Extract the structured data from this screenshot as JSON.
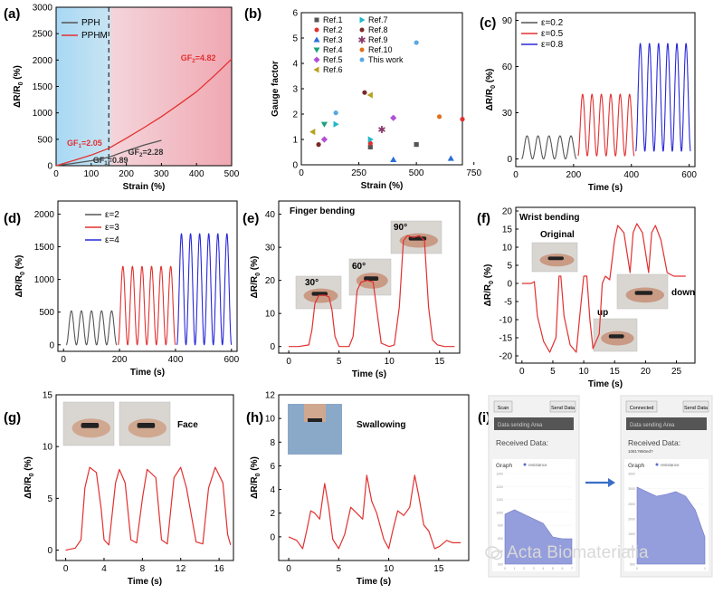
{
  "panel_labels": [
    "(a)",
    "(b)",
    "(c)",
    "(d)",
    "(e)",
    "(f)",
    "(g)",
    "(h)",
    "(i)"
  ],
  "colors": {
    "gray": "#555555",
    "red": "#e23030",
    "blue": "#2828d8",
    "bg_blue": "#9fd0f0",
    "bg_red": "#f0b0b8",
    "axis": "#000000"
  },
  "chart_data": [
    {
      "id": "a",
      "type": "line",
      "xlabel": "Strain (%)",
      "ylabel": "ΔR/R0 (%)",
      "xlim": [
        0,
        500
      ],
      "ylim": [
        0,
        3000
      ],
      "xticks": [
        0,
        100,
        200,
        300,
        400,
        500
      ],
      "yticks": [
        0,
        500,
        1000,
        1500,
        2000,
        2500,
        3000
      ],
      "legend": [
        "PPH",
        "PPHM"
      ],
      "annotations": [
        "GF1=2.05",
        "GF2=4.82",
        "GF1=0.89",
        "GF2=2.28"
      ],
      "series": [
        {
          "name": "PPH",
          "color": "#555555",
          "x": [
            0,
            50,
            100,
            150,
            200,
            250,
            300
          ],
          "y": [
            0,
            45,
            95,
            160,
            280,
            390,
            480
          ]
        },
        {
          "name": "PPHM",
          "color": "#e23030",
          "x": [
            0,
            50,
            100,
            150,
            200,
            250,
            300,
            350,
            400,
            450,
            500
          ],
          "y": [
            0,
            100,
            200,
            330,
            520,
            720,
            930,
            1160,
            1400,
            1700,
            2020
          ]
        }
      ]
    },
    {
      "id": "b",
      "type": "scatter",
      "xlabel": "Strain (%)",
      "ylabel": "Gauge factor",
      "xlim": [
        0,
        700
      ],
      "ylim": [
        0,
        6
      ],
      "xticks": [
        0,
        250,
        500,
        750
      ],
      "yticks": [
        0,
        1,
        2,
        3,
        4,
        5,
        6
      ],
      "legend_col1": [
        "Ref.1",
        "Ref.2",
        "Ref.3",
        "Ref.4",
        "Ref.5",
        "Ref.6"
      ],
      "legend_col2": [
        "Ref.7",
        "Ref.8",
        "Ref.9",
        "Ref.10",
        "This work"
      ],
      "series": [
        {
          "name": "Ref.1",
          "color": "#555555",
          "marker": "square",
          "points": [
            [
              300,
              0.7
            ],
            [
              500,
              0.8
            ]
          ]
        },
        {
          "name": "Ref.2",
          "color": "#e23030",
          "marker": "circle",
          "points": [
            [
              300,
              0.85
            ],
            [
              700,
              1.8
            ]
          ]
        },
        {
          "name": "Ref.3",
          "color": "#2a6fd6",
          "marker": "triangle",
          "points": [
            [
              400,
              0.2
            ],
            [
              650,
              0.25
            ]
          ]
        },
        {
          "name": "Ref.4",
          "color": "#1aa37a",
          "marker": "triangle-down",
          "points": [
            [
              100,
              1.6
            ]
          ]
        },
        {
          "name": "Ref.5",
          "color": "#b04fd6",
          "marker": "diamond",
          "points": [
            [
              100,
              1.0
            ],
            [
              400,
              1.85
            ]
          ]
        },
        {
          "name": "Ref.6",
          "color": "#b8a020",
          "marker": "triangle-left",
          "points": [
            [
              50,
              1.3
            ],
            [
              300,
              2.75
            ]
          ]
        },
        {
          "name": "Ref.7",
          "color": "#20b8c8",
          "marker": "triangle-right",
          "points": [
            [
              300,
              1.0
            ],
            [
              150,
              1.6
            ]
          ]
        },
        {
          "name": "Ref.8",
          "color": "#7a2a2a",
          "marker": "circle",
          "points": [
            [
              75,
              0.8
            ],
            [
              275,
              2.85
            ]
          ]
        },
        {
          "name": "Ref.9",
          "color": "#8a3a6a",
          "marker": "star",
          "points": [
            [
              350,
              1.4
            ]
          ]
        },
        {
          "name": "Ref.10",
          "color": "#e0701a",
          "marker": "circle",
          "points": [
            [
              600,
              1.9
            ]
          ]
        },
        {
          "name": "This work",
          "color": "#5aa8e0",
          "marker": "circle",
          "points": [
            [
              150,
              2.05
            ],
            [
              500,
              4.82
            ]
          ]
        }
      ]
    },
    {
      "id": "c",
      "type": "line",
      "xlabel": "Time (s)",
      "ylabel": "ΔR/R0 (%)",
      "xlim": [
        0,
        620
      ],
      "ylim": [
        -5,
        95
      ],
      "xticks": [
        0,
        200,
        400,
        600
      ],
      "yticks": [
        0,
        30,
        60,
        90
      ],
      "legend": [
        "ε=0.2",
        "ε=0.5",
        "ε=0.8"
      ],
      "series": [
        {
          "name": "ε=0.2",
          "color": "#555555",
          "x_range": [
            20,
            210
          ],
          "cycles": 5,
          "peak": 15,
          "base": 0
        },
        {
          "name": "ε=0.5",
          "color": "#e23030",
          "x_range": [
            215,
            410
          ],
          "cycles": 6,
          "peak": 42,
          "base": 2
        },
        {
          "name": "ε=0.8",
          "color": "#2828d8",
          "x_range": [
            415,
            605
          ],
          "cycles": 6,
          "peak": 75,
          "base": 5
        }
      ]
    },
    {
      "id": "d",
      "type": "line",
      "xlabel": "Time (s)",
      "ylabel": "ΔR/R0 (%)",
      "xlim": [
        -20,
        620
      ],
      "ylim": [
        -100,
        2200
      ],
      "xticks": [
        0,
        200,
        400,
        600
      ],
      "yticks": [
        0,
        500,
        1000,
        1500,
        2000
      ],
      "legend": [
        "ε=2",
        "ε=3",
        "ε=4"
      ],
      "series": [
        {
          "name": "ε=2",
          "color": "#555555",
          "x_range": [
            10,
            190
          ],
          "cycles": 5,
          "peak": 520,
          "base": 0
        },
        {
          "name": "ε=3",
          "color": "#e23030",
          "x_range": [
            195,
            400
          ],
          "cycles": 6,
          "peak": 1200,
          "base": 0
        },
        {
          "name": "ε=4",
          "color": "#2828d8",
          "x_range": [
            405,
            600
          ],
          "cycles": 6,
          "peak": 1700,
          "base": 0
        }
      ]
    },
    {
      "id": "e",
      "type": "line",
      "xlabel": "Time (s)",
      "ylabel": "ΔR/R0 (%)",
      "xlim": [
        -1,
        17
      ],
      "ylim": [
        -2,
        44
      ],
      "xticks": [
        0,
        5,
        10,
        15
      ],
      "yticks": [
        0,
        10,
        20,
        30,
        40
      ],
      "title": "Finger bending",
      "annotations": [
        "30°",
        "60°",
        "90°"
      ],
      "series": [
        {
          "name": "",
          "color": "#e23030",
          "x": [
            0,
            1,
            2,
            2.3,
            2.6,
            3,
            3.6,
            4,
            4.3,
            4.6,
            5,
            6,
            6.4,
            6.8,
            7.2,
            7.8,
            8.4,
            8.8,
            9.2,
            10,
            10.5,
            11,
            11.4,
            11.8,
            12.4,
            13,
            13.5,
            13.9,
            14.3,
            14.8,
            15.5,
            16.5
          ],
          "y": [
            0,
            0,
            0.5,
            5,
            13,
            15.5,
            15.5,
            15,
            11,
            3,
            0,
            0,
            3,
            17,
            19.5,
            20,
            19.5,
            10,
            1,
            0,
            0.5,
            12,
            32,
            33.5,
            33,
            33.5,
            32,
            12,
            2,
            0.5,
            0,
            0
          ]
        }
      ]
    },
    {
      "id": "f",
      "type": "line",
      "xlabel": "Time (s)",
      "ylabel": "ΔR/R0 (%)",
      "xlim": [
        -1,
        28
      ],
      "ylim": [
        -22,
        21
      ],
      "xticks": [
        0,
        5,
        10,
        15,
        20,
        25
      ],
      "yticks": [
        -20,
        -15,
        -10,
        -5,
        0,
        5,
        10,
        15,
        20
      ],
      "title": "Wrist bending",
      "annotations": [
        "Original",
        "up",
        "down"
      ],
      "series": [
        {
          "name": "",
          "color": "#e23030",
          "x": [
            0,
            1.5,
            2,
            2.5,
            3.5,
            4.5,
            5.5,
            6,
            6.3,
            6.8,
            7.8,
            8.8,
            9.3,
            10,
            10.5,
            11,
            11.5,
            12.5,
            13,
            13.5,
            14.2,
            15,
            15.5,
            16.5,
            17.5,
            18,
            18.6,
            19.5,
            20.5,
            21,
            21.6,
            22.5,
            23.5,
            24,
            24.6,
            25.5,
            26.5
          ],
          "y": [
            0,
            0,
            0.5,
            -9,
            -16,
            -19,
            -15,
            2,
            2,
            -9,
            -17,
            -19,
            -10,
            2,
            2,
            -10,
            -18,
            -14,
            0,
            2,
            1,
            12,
            16,
            14,
            3,
            14,
            16.5,
            14,
            3,
            14,
            16,
            12,
            3,
            2.5,
            2,
            2,
            2
          ]
        }
      ]
    },
    {
      "id": "g",
      "type": "line",
      "xlabel": "Time (s)",
      "ylabel": "ΔR/R0 (%)",
      "xlim": [
        -1,
        17.5
      ],
      "ylim": [
        -1,
        15
      ],
      "xticks": [
        0,
        4,
        8,
        12,
        16
      ],
      "yticks": [
        0,
        5,
        10,
        15
      ],
      "title": "Face",
      "series": [
        {
          "name": "",
          "color": "#e23030",
          "x": [
            0,
            1,
            1.6,
            2,
            2.5,
            3.2,
            3.7,
            4,
            4.5,
            5.2,
            5.6,
            6.2,
            6.8,
            7.4,
            8,
            8.5,
            9.4,
            10,
            10.6,
            11.3,
            12,
            12.6,
            13.6,
            14.3,
            14.9,
            15.6,
            16.4,
            16.9,
            17.2
          ],
          "y": [
            0,
            0.2,
            1,
            6,
            8,
            7.5,
            4,
            1,
            0.5,
            6.5,
            7.8,
            6.5,
            1,
            0.7,
            5,
            7.8,
            7,
            1,
            0.6,
            7,
            8,
            6,
            0.8,
            0.6,
            6,
            8,
            6.5,
            1.5,
            0.5
          ]
        }
      ]
    },
    {
      "id": "h",
      "type": "line",
      "xlabel": "Time (s)",
      "ylabel": "ΔR/R0 (%)",
      "xlim": [
        -1,
        18
      ],
      "ylim": [
        -2,
        12
      ],
      "xticks": [
        0,
        5,
        10,
        15
      ],
      "yticks": [
        0,
        2,
        4,
        6,
        8,
        10,
        12
      ],
      "title": "Swallowing",
      "series": [
        {
          "name": "",
          "color": "#e23030",
          "x": [
            0,
            0.8,
            1.4,
            1.8,
            2.2,
            2.6,
            3.1,
            3.6,
            4,
            4.4,
            5,
            5.6,
            6.2,
            6.8,
            7.4,
            7.8,
            8.3,
            8.8,
            9.5,
            10,
            10.4,
            10.9,
            11.5,
            12.1,
            12.6,
            13,
            13.5,
            14,
            14.6,
            15.1,
            15.8,
            16.4,
            17.2
          ],
          "y": [
            0,
            -0.3,
            -1,
            0.5,
            2.2,
            2,
            1.5,
            4.5,
            2.5,
            -0.2,
            -1,
            0.2,
            2.5,
            2,
            1.5,
            5.2,
            3,
            2,
            -0.2,
            -1,
            0.5,
            2.2,
            1.8,
            2.5,
            5.2,
            3.5,
            1,
            0.5,
            -1,
            -0.8,
            -0.3,
            -0.5,
            -0.5
          ]
        }
      ]
    }
  ],
  "panel_i": {
    "left": {
      "btn_scan": "Scan",
      "btn_send": "Send Data",
      "area": "Data sending Area",
      "received_label": "Received Data:",
      "received_value": "",
      "graph_title": "Graph",
      "legend": "resistance",
      "y_ticks": [
        "1300",
        "1200",
        "1100",
        "1000",
        "900",
        "800",
        "700",
        "600"
      ],
      "x_ticks": [
        "0",
        "1",
        "2",
        "3",
        "4",
        "5",
        "6",
        "7"
      ]
    },
    "right": {
      "btn_connected": "Connected",
      "btn_send": "Send Data",
      "area": "Data sending Area",
      "received_label": "Received Data:",
      "received_value": "1081?860ed?",
      "graph_title": "Graph",
      "legend": "resistance",
      "y_ticks": [
        "3500",
        "3000",
        "2500",
        "2000",
        "1500",
        "1000",
        "500"
      ],
      "x_ticks": [
        "0",
        "1"
      ]
    },
    "left_curve": [
      0.55,
      0.6,
      0.55,
      0.5,
      0.45,
      0.3,
      0.28,
      0.28
    ],
    "right_curve": [
      0.85,
      0.8,
      0.75,
      0.77,
      0.8,
      0.75,
      0.6,
      0.3
    ],
    "watermark": "Acta Biomaterialia"
  },
  "photo_labels": [
    "30°",
    "60°",
    "90°",
    "Original",
    "up",
    "down"
  ]
}
